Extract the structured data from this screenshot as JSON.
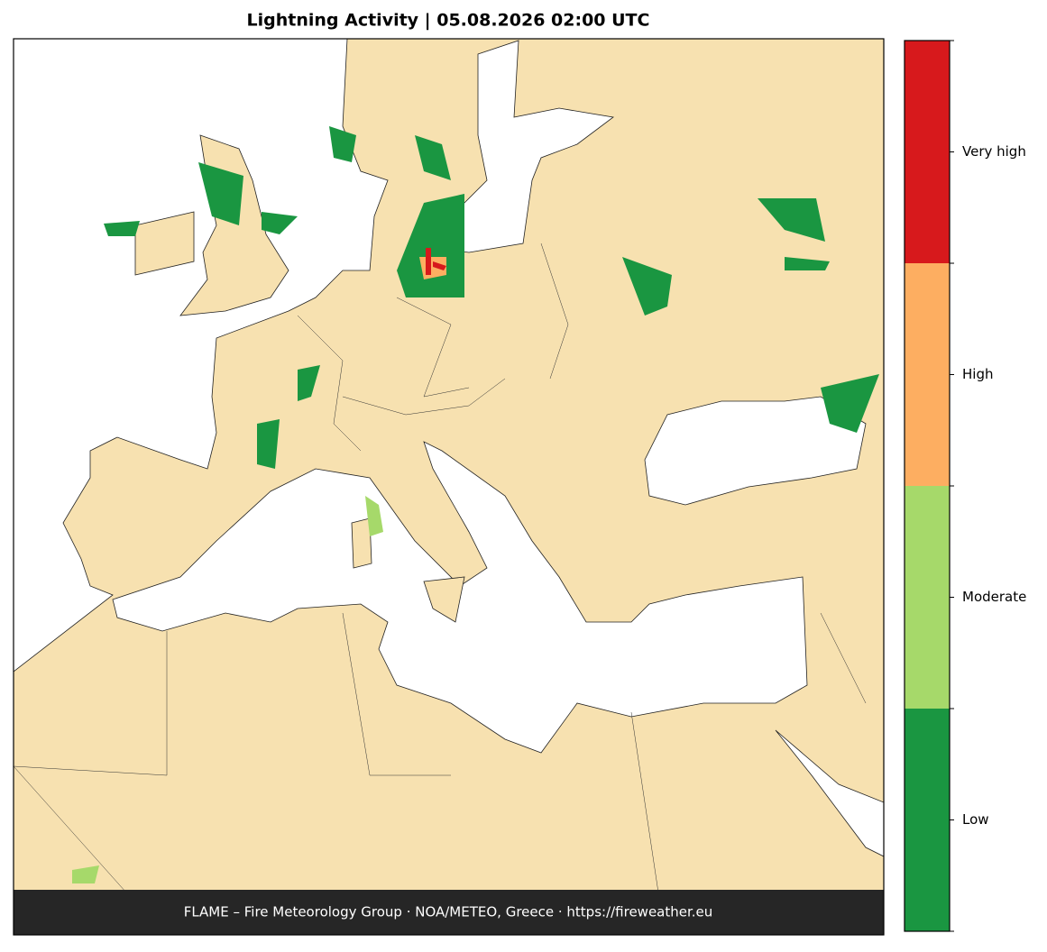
{
  "title": "Lightning Activity  |  05.08.2026 02:00 UTC",
  "colorbar": {
    "labels": [
      "Low",
      "Moderate",
      "High",
      "Very high"
    ],
    "colors": [
      "#1a9641",
      "#a6d96a",
      "#fdae61",
      "#d7191c"
    ]
  },
  "footer": "FLAME – Fire Meteorology Group · NOA/METEO, Greece · https://fireweather.eu"
}
